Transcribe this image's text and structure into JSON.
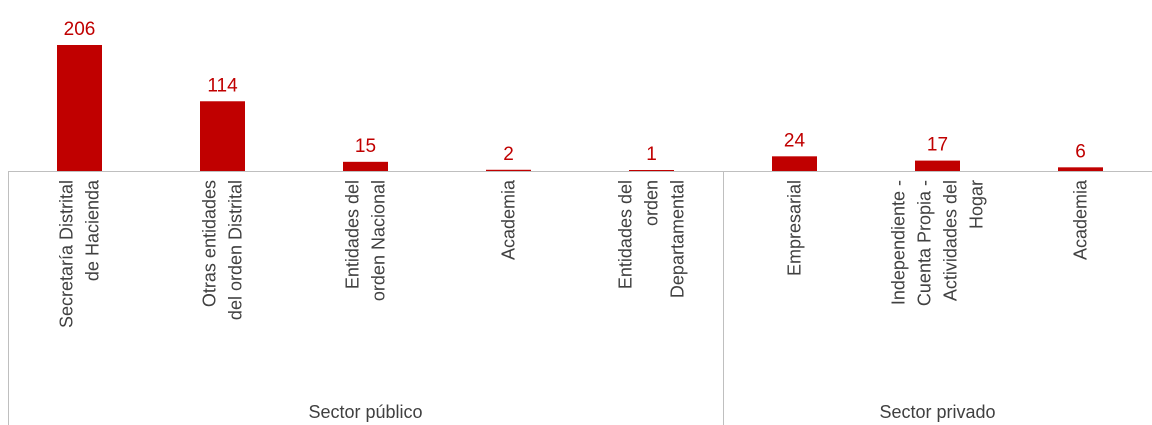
{
  "chart_data": {
    "type": "bar",
    "categories": [
      [
        "Secretaría Distrital",
        "de Hacienda"
      ],
      [
        "Otras entidades",
        "del orden Distrital"
      ],
      [
        "Entidades del",
        "orden Nacional"
      ],
      [
        "Academia"
      ],
      [
        "Entidades del",
        "orden",
        "Departamental"
      ],
      [
        "Empresarial"
      ],
      [
        "Independiente -",
        "Cuenta Propia -",
        "Actividades del",
        "Hogar"
      ],
      [
        "Academia"
      ]
    ],
    "values": [
      206,
      114,
      15,
      2,
      1,
      24,
      17,
      6
    ],
    "value_labels": [
      "206",
      "114",
      "15",
      "2",
      "1",
      "24",
      "17",
      "6"
    ],
    "groups": [
      {
        "label": "Sector público",
        "start": 0,
        "end": 4
      },
      {
        "label": "Sector privado",
        "start": 5,
        "end": 7
      }
    ],
    "bar_color": "#c00000",
    "label_color": "#c00000",
    "text_color": "#404040",
    "axis_color": "#bfbfbf",
    "grid": false,
    "legend": "none"
  }
}
